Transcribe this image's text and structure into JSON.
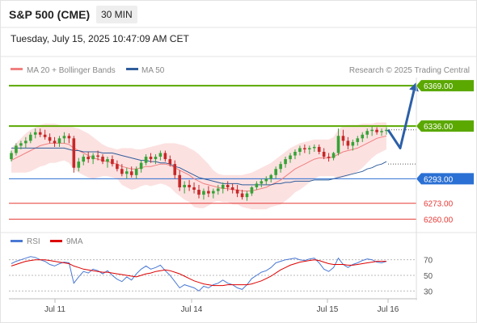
{
  "header": {
    "title": "S&P 500 (CME)",
    "interval": "30 MIN",
    "datetime": "Tuesday, July 15, 2025 10:47:09 AM CET"
  },
  "legend": {
    "ma20_label": "MA 20 + Bollinger Bands",
    "ma20_color": "#f08080",
    "ma50_label": "MA 50",
    "ma50_color": "#2f5d9b",
    "credit": "Research © 2025 Trading Central"
  },
  "levels": [
    {
      "value": 6369.0,
      "label": "6369.00",
      "style": "resistance",
      "color": "#5aa800"
    },
    {
      "value": 6336.0,
      "label": "6336.00",
      "style": "resistance",
      "color": "#5aa800"
    },
    {
      "value": 6293.0,
      "label": "6293.00",
      "style": "pivot",
      "color": "#2b70d4"
    },
    {
      "value": 6273.0,
      "label": "6273.00",
      "style": "support",
      "color": "#e53935"
    },
    {
      "value": 6260.0,
      "label": "6260.00",
      "style": "support",
      "color": "#e53935"
    }
  ],
  "rsi_legend": {
    "rsi_label": "RSI",
    "rsi_color": "#4a78d4",
    "ma_label": "9MA",
    "ma_color": "#dd0000"
  },
  "chart_data": [
    {
      "type": "candlestick",
      "title": "",
      "x_tick_labels": [
        "Jul 11",
        "Jul 14",
        "Jul 15",
        "Jul 16"
      ],
      "ylim": [
        6255,
        6375
      ],
      "grid": false,
      "legend_placement": "top-left",
      "ohlc": [
        [
          6309,
          6316,
          6307,
          6314
        ],
        [
          6314,
          6322,
          6312,
          6320
        ],
        [
          6320,
          6324,
          6317,
          6322
        ],
        [
          6322,
          6327,
          6318,
          6324
        ],
        [
          6324,
          6331,
          6322,
          6329
        ],
        [
          6329,
          6334,
          6326,
          6331
        ],
        [
          6331,
          6334,
          6327,
          6329
        ],
        [
          6329,
          6333,
          6325,
          6327
        ],
        [
          6327,
          6330,
          6322,
          6324
        ],
        [
          6324,
          6327,
          6319,
          6322
        ],
        [
          6322,
          6328,
          6319,
          6326
        ],
        [
          6326,
          6331,
          6322,
          6328
        ],
        [
          6328,
          6330,
          6322,
          6326
        ],
        [
          6326,
          6328,
          6298,
          6302
        ],
        [
          6302,
          6310,
          6299,
          6307
        ],
        [
          6307,
          6313,
          6304,
          6311
        ],
        [
          6311,
          6315,
          6306,
          6309
        ],
        [
          6309,
          6314,
          6305,
          6312
        ],
        [
          6312,
          6316,
          6308,
          6311
        ],
        [
          6311,
          6313,
          6305,
          6307
        ],
        [
          6307,
          6311,
          6302,
          6309
        ],
        [
          6309,
          6312,
          6303,
          6305
        ],
        [
          6305,
          6308,
          6299,
          6301
        ],
        [
          6301,
          6305,
          6295,
          6297
        ],
        [
          6297,
          6302,
          6293,
          6299
        ],
        [
          6299,
          6303,
          6294,
          6296
        ],
        [
          6296,
          6303,
          6293,
          6301
        ],
        [
          6301,
          6308,
          6298,
          6306
        ],
        [
          6306,
          6313,
          6304,
          6311
        ],
        [
          6311,
          6314,
          6306,
          6309
        ],
        [
          6309,
          6313,
          6305,
          6311
        ],
        [
          6311,
          6316,
          6308,
          6314
        ],
        [
          6314,
          6316,
          6307,
          6309
        ],
        [
          6309,
          6312,
          6303,
          6305
        ],
        [
          6305,
          6308,
          6293,
          6296
        ],
        [
          6296,
          6300,
          6283,
          6286
        ],
        [
          6286,
          6291,
          6281,
          6288
        ],
        [
          6288,
          6292,
          6283,
          6286
        ],
        [
          6286,
          6290,
          6281,
          6284
        ],
        [
          6284,
          6288,
          6277,
          6280
        ],
        [
          6280,
          6285,
          6276,
          6283
        ],
        [
          6283,
          6287,
          6278,
          6281
        ],
        [
          6281,
          6285,
          6277,
          6283
        ],
        [
          6283,
          6288,
          6280,
          6285
        ],
        [
          6285,
          6290,
          6281,
          6288
        ],
        [
          6288,
          6291,
          6283,
          6286
        ],
        [
          6286,
          6289,
          6281,
          6284
        ],
        [
          6284,
          6288,
          6278,
          6281
        ],
        [
          6281,
          6284,
          6276,
          6278
        ],
        [
          6278,
          6283,
          6275,
          6281
        ],
        [
          6281,
          6287,
          6279,
          6286
        ],
        [
          6286,
          6291,
          6284,
          6289
        ],
        [
          6289,
          6293,
          6286,
          6291
        ],
        [
          6291,
          6295,
          6288,
          6293
        ],
        [
          6293,
          6297,
          6290,
          6296
        ],
        [
          6296,
          6303,
          6293,
          6301
        ],
        [
          6301,
          6307,
          6298,
          6305
        ],
        [
          6305,
          6311,
          6302,
          6309
        ],
        [
          6309,
          6314,
          6306,
          6312
        ],
        [
          6312,
          6317,
          6309,
          6315
        ],
        [
          6315,
          6320,
          6312,
          6318
        ],
        [
          6318,
          6321,
          6314,
          6317
        ],
        [
          6317,
          6320,
          6313,
          6318
        ],
        [
          6318,
          6321,
          6315,
          6319
        ],
        [
          6319,
          6321,
          6313,
          6315
        ],
        [
          6315,
          6318,
          6309,
          6311
        ],
        [
          6311,
          6314,
          6307,
          6310
        ],
        [
          6310,
          6315,
          6308,
          6314
        ],
        [
          6314,
          6334,
          6312,
          6328
        ],
        [
          6328,
          6333,
          6320,
          6324
        ],
        [
          6324,
          6327,
          6317,
          6320
        ],
        [
          6320,
          6325,
          6316,
          6323
        ],
        [
          6323,
          6328,
          6320,
          6326
        ],
        [
          6326,
          6331,
          6323,
          6329
        ],
        [
          6329,
          6334,
          6326,
          6332
        ],
        [
          6332,
          6336,
          6328,
          6333
        ],
        [
          6333,
          6335,
          6329,
          6331
        ],
        [
          6331,
          6334,
          6328,
          6332
        ],
        [
          6332,
          6335,
          6329,
          6333
        ]
      ],
      "ma20": [
        6308,
        6310,
        6312,
        6314,
        6316,
        6318,
        6320,
        6321,
        6322,
        6322,
        6322,
        6322,
        6321,
        6318,
        6316,
        6314,
        6312,
        6310,
        6309,
        6308,
        6307,
        6306,
        6305,
        6303,
        6302,
        6301,
        6301,
        6302,
        6303,
        6303,
        6304,
        6305,
        6305,
        6304,
        6302,
        6300,
        6298,
        6296,
        6293,
        6291,
        6289,
        6288,
        6287,
        6286,
        6285,
        6285,
        6284,
        6284,
        6283,
        6283,
        6283,
        6284,
        6285,
        6286,
        6288,
        6290,
        6292,
        6295,
        6298,
        6301,
        6303,
        6305,
        6307,
        6309,
        6310,
        6310,
        6310,
        6311,
        6313,
        6315,
        6316,
        6317,
        6318,
        6320,
        6322,
        6324,
        6326,
        6327,
        6328
      ],
      "bollinger_upper": [
        6318,
        6322,
        6326,
        6330,
        6333,
        6335,
        6337,
        6338,
        6338,
        6338,
        6337,
        6336,
        6336,
        6335,
        6334,
        6332,
        6330,
        6327,
        6324,
        6321,
        6319,
        6318,
        6317,
        6318,
        6318,
        6318,
        6317,
        6317,
        6318,
        6319,
        6320,
        6321,
        6322,
        6322,
        6322,
        6321,
        6320,
        6318,
        6316,
        6313,
        6309,
        6305,
        6300,
        6297,
        6296,
        6296,
        6296,
        6296,
        6296,
        6297,
        6298,
        6300,
        6302,
        6304,
        6306,
        6309,
        6312,
        6315,
        6318,
        6320,
        6322,
        6323,
        6324,
        6325,
        6325,
        6325,
        6325,
        6327,
        6333,
        6336,
        6337,
        6337,
        6337,
        6338,
        6338,
        6338,
        6339,
        6339,
        6339
      ],
      "bollinger_lower": [
        6298,
        6298,
        6298,
        6298,
        6299,
        6301,
        6303,
        6304,
        6306,
        6306,
        6307,
        6308,
        6306,
        6301,
        6298,
        6296,
        6294,
        6293,
        6294,
        6295,
        6295,
        6294,
        6293,
        6288,
        6286,
        6284,
        6285,
        6287,
        6288,
        6287,
        6288,
        6289,
        6288,
        6286,
        6282,
        6279,
        6276,
        6274,
        6270,
        6269,
        6269,
        6271,
        6274,
        6275,
        6274,
        6274,
        6272,
        6272,
        6270,
        6269,
        6268,
        6268,
        6268,
        6268,
        6270,
        6271,
        6272,
        6275,
        6278,
        6282,
        6284,
        6287,
        6290,
        6293,
        6295,
        6295,
        6295,
        6295,
        6293,
        6294,
        6295,
        6297,
        6299,
        6302,
        6306,
        6310,
        6313,
        6315,
        6317
      ],
      "ma50": [
        6318,
        6318,
        6318,
        6318,
        6318,
        6318,
        6318,
        6318,
        6318,
        6318,
        6318,
        6318,
        6317,
        6316,
        6316,
        6315,
        6315,
        6315,
        6315,
        6314,
        6314,
        6314,
        6313,
        6312,
        6311,
        6310,
        6309,
        6308,
        6308,
        6307,
        6307,
        6306,
        6306,
        6305,
        6303,
        6302,
        6300,
        6298,
        6296,
        6294,
        6293,
        6292,
        6291,
        6290,
        6289,
        6289,
        6289,
        6289,
        6288,
        6288,
        6288,
        6288,
        6288,
        6288,
        6288,
        6289,
        6289,
        6290,
        6290,
        6291,
        6291,
        6291,
        6291,
        6292,
        6292,
        6292,
        6292,
        6293,
        6294,
        6295,
        6296,
        6297,
        6298,
        6299,
        6301,
        6302,
        6304,
        6305,
        6307
      ],
      "projection": {
        "from": 6333,
        "via": 6318,
        "to": 6369
      }
    },
    {
      "type": "line",
      "title": "",
      "ylim": [
        20,
        80
      ],
      "y_tick_labels": [
        "70",
        "50",
        "30"
      ],
      "grid": true,
      "legend_placement": "top-left",
      "series": [
        {
          "name": "RSI",
          "values": [
            65,
            68,
            70,
            72,
            74,
            73,
            70,
            68,
            64,
            62,
            65,
            67,
            66,
            40,
            48,
            55,
            53,
            58,
            56,
            52,
            56,
            50,
            45,
            42,
            48,
            44,
            52,
            58,
            62,
            58,
            60,
            63,
            56,
            50,
            42,
            34,
            38,
            36,
            34,
            30,
            36,
            34,
            38,
            40,
            44,
            40,
            38,
            34,
            32,
            38,
            46,
            50,
            54,
            56,
            60,
            66,
            68,
            70,
            71,
            72,
            70,
            69,
            71,
            72,
            66,
            58,
            55,
            60,
            72,
            64,
            60,
            64,
            66,
            69,
            71,
            70,
            67,
            66,
            68
          ]
        },
        {
          "name": "9MA",
          "values": [
            62,
            64,
            66,
            68,
            69,
            70,
            70,
            70,
            69,
            68,
            67,
            66,
            65,
            62,
            60,
            58,
            57,
            56,
            55,
            54,
            54,
            53,
            52,
            51,
            50,
            49,
            48,
            50,
            52,
            53,
            55,
            56,
            57,
            56,
            54,
            52,
            49,
            46,
            43,
            41,
            39,
            38,
            37,
            37,
            37,
            38,
            38,
            38,
            38,
            38,
            39,
            41,
            43,
            46,
            49,
            53,
            57,
            60,
            63,
            65,
            67,
            68,
            69,
            70,
            69,
            67,
            65,
            64,
            64,
            64,
            63,
            63,
            64,
            65,
            66,
            67,
            68,
            68,
            68
          ]
        }
      ]
    }
  ]
}
